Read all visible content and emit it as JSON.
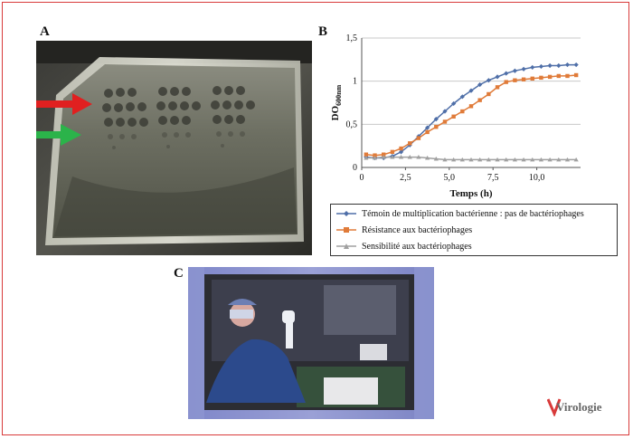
{
  "panels": {
    "a": "A",
    "b": "B",
    "c": "C"
  },
  "chart_data": {
    "type": "line",
    "xlabel": "Temps (h)",
    "ylabel": "DO",
    "ylabel_sub": "600nm",
    "xlim": [
      0,
      12.5
    ],
    "ylim": [
      0,
      1.5
    ],
    "xticks": [
      "0",
      "2,5",
      "5,0",
      "7,5",
      "10,0"
    ],
    "xtick_values": [
      0,
      2.5,
      5.0,
      7.5,
      10.0
    ],
    "yticks": [
      "0",
      "0,5",
      "1",
      "1,5"
    ],
    "ytick_values": [
      0,
      0.5,
      1,
      1.5
    ],
    "grid": "horizontal",
    "legend_position": "bottom",
    "series": [
      {
        "name": "Témoin de multiplication bactérienne : pas de bactériophages",
        "color": "#4f6fa8",
        "marker": "diamond",
        "x": [
          0.25,
          0.75,
          1.25,
          1.75,
          2.25,
          2.75,
          3.25,
          3.75,
          4.25,
          4.75,
          5.25,
          5.75,
          6.25,
          6.75,
          7.25,
          7.75,
          8.25,
          8.75,
          9.25,
          9.75,
          10.25,
          10.75,
          11.25,
          11.75,
          12.25
        ],
        "values": [
          0.12,
          0.11,
          0.11,
          0.13,
          0.18,
          0.26,
          0.36,
          0.46,
          0.56,
          0.65,
          0.74,
          0.82,
          0.89,
          0.96,
          1.01,
          1.05,
          1.09,
          1.12,
          1.14,
          1.16,
          1.17,
          1.18,
          1.18,
          1.19,
          1.19
        ]
      },
      {
        "name": "Résistance aux bactériophages",
        "color": "#e07b39",
        "marker": "square",
        "x": [
          0.25,
          0.75,
          1.25,
          1.75,
          2.25,
          2.75,
          3.25,
          3.75,
          4.25,
          4.75,
          5.25,
          5.75,
          6.25,
          6.75,
          7.25,
          7.75,
          8.25,
          8.75,
          9.25,
          9.75,
          10.25,
          10.75,
          11.25,
          11.75,
          12.25
        ],
        "values": [
          0.15,
          0.14,
          0.15,
          0.18,
          0.22,
          0.28,
          0.34,
          0.41,
          0.47,
          0.53,
          0.59,
          0.65,
          0.71,
          0.78,
          0.85,
          0.93,
          0.99,
          1.01,
          1.02,
          1.03,
          1.04,
          1.05,
          1.06,
          1.06,
          1.07
        ]
      },
      {
        "name": "Sensibilité aux bactériophages",
        "color": "#a0a0a0",
        "marker": "triangle",
        "x": [
          0.25,
          0.75,
          1.25,
          1.75,
          2.25,
          2.75,
          3.25,
          3.75,
          4.25,
          4.75,
          5.25,
          5.75,
          6.25,
          6.75,
          7.25,
          7.75,
          8.25,
          8.75,
          9.25,
          9.75,
          10.25,
          10.75,
          11.25,
          11.75,
          12.25
        ],
        "values": [
          0.11,
          0.11,
          0.12,
          0.12,
          0.12,
          0.12,
          0.12,
          0.11,
          0.1,
          0.09,
          0.09,
          0.09,
          0.09,
          0.09,
          0.09,
          0.09,
          0.09,
          0.09,
          0.09,
          0.09,
          0.09,
          0.09,
          0.09,
          0.09,
          0.09
        ]
      }
    ]
  },
  "logo": {
    "text": "Virologie",
    "accent": "#d83a3a"
  }
}
